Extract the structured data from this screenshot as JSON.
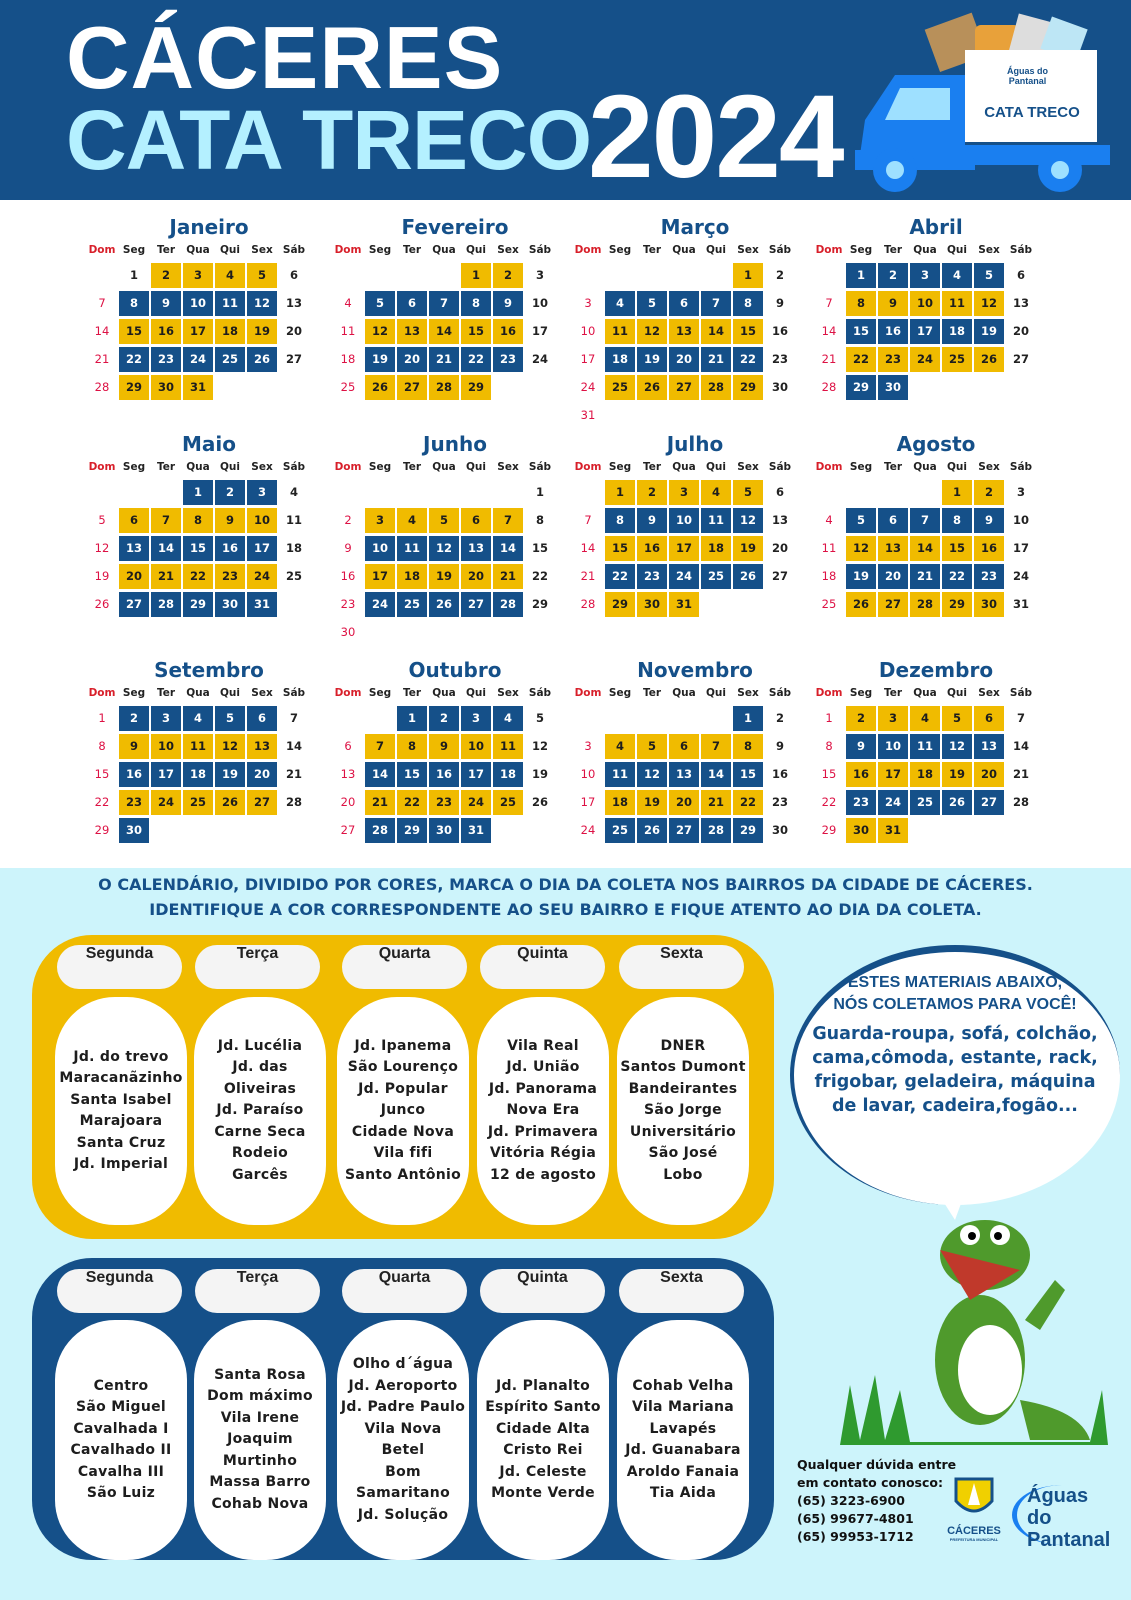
{
  "header": {
    "line1": "CÁCERES",
    "line2": "CATA TRECO",
    "year": "2024",
    "truck_label": "CATA TRECO",
    "truck_logo": "Águas do Pantanal"
  },
  "colors": {
    "blue": "#155089",
    "yellow": "#f0bb00",
    "title_cyan": "#b4f0ff",
    "background_light": "#cdf4fb",
    "sunday_red": "#d81f2a"
  },
  "weekdays": [
    "Dom",
    "Seg",
    "Ter",
    "Qua",
    "Qui",
    "Sex",
    "Sáb"
  ],
  "months": [
    {
      "name": "Janeiro",
      "first_weekday": 1,
      "days": 31,
      "week_colors": [
        "yellow",
        "blue",
        "yellow",
        "blue",
        "yellow"
      ],
      "not_highlighted": [
        1
      ]
    },
    {
      "name": "Fevereiro",
      "first_weekday": 4,
      "days": 29,
      "week_colors": [
        "yellow",
        "blue",
        "yellow",
        "blue",
        "yellow"
      ],
      "not_highlighted": []
    },
    {
      "name": "Março",
      "first_weekday": 5,
      "days": 31,
      "week_colors": [
        "yellow",
        "blue",
        "yellow",
        "blue",
        "yellow",
        "yellow"
      ],
      "not_highlighted": []
    },
    {
      "name": "Abril",
      "first_weekday": 1,
      "days": 30,
      "week_colors": [
        "blue",
        "yellow",
        "blue",
        "yellow",
        "blue"
      ],
      "not_highlighted": []
    },
    {
      "name": "Maio",
      "first_weekday": 3,
      "days": 31,
      "week_colors": [
        "blue",
        "yellow",
        "blue",
        "yellow",
        "blue"
      ],
      "not_highlighted": []
    },
    {
      "name": "Junho",
      "first_weekday": 6,
      "days": 30,
      "week_colors": [
        "yellow",
        "yellow",
        "blue",
        "yellow",
        "blue",
        "blue"
      ],
      "not_highlighted": []
    },
    {
      "name": "Julho",
      "first_weekday": 1,
      "days": 31,
      "week_colors": [
        "yellow",
        "blue",
        "yellow",
        "blue",
        "yellow"
      ],
      "not_highlighted": []
    },
    {
      "name": "Agosto",
      "first_weekday": 4,
      "days": 31,
      "week_colors": [
        "yellow",
        "blue",
        "yellow",
        "blue",
        "yellow"
      ],
      "not_highlighted": []
    },
    {
      "name": "Setembro",
      "first_weekday": 0,
      "days": 30,
      "week_colors": [
        "blue",
        "yellow",
        "blue",
        "yellow",
        "blue"
      ],
      "not_highlighted": []
    },
    {
      "name": "Outubro",
      "first_weekday": 2,
      "days": 31,
      "week_colors": [
        "blue",
        "yellow",
        "blue",
        "yellow",
        "blue"
      ],
      "not_highlighted": []
    },
    {
      "name": "Novembro",
      "first_weekday": 5,
      "days": 30,
      "week_colors": [
        "blue",
        "yellow",
        "blue",
        "yellow",
        "blue"
      ],
      "not_highlighted": []
    },
    {
      "name": "Dezembro",
      "first_weekday": 0,
      "days": 31,
      "week_colors": [
        "yellow",
        "blue",
        "yellow",
        "blue",
        "yellow"
      ],
      "not_highlighted": []
    }
  ],
  "intro": {
    "line1": "O CALENDÁRIO, DIVIDIDO POR CORES, MARCA O DIA DA COLETA NOS BAIRROS DA CIDADE DE CÁCERES.",
    "line2": "IDENTIFIQUE A COR CORRESPONDENTE AO SEU BAIRRO E FIQUE ATENTO AO DIA DA COLETA."
  },
  "yellow_schedule": [
    {
      "day": "Segunda",
      "areas": [
        "Jd. do trevo",
        "Maracanãzinho",
        "Santa Isabel",
        "Marajoara",
        "Santa Cruz",
        "Jd. Imperial"
      ]
    },
    {
      "day": "Terça",
      "areas": [
        "Jd. Lucélia",
        "Jd. das Oliveiras",
        "Jd. Paraíso",
        "Carne Seca",
        "Rodeio",
        "Garcês"
      ]
    },
    {
      "day": "Quarta",
      "areas": [
        "Jd. Ipanema",
        "São Lourenço",
        "Jd. Popular",
        "Junco",
        "Cidade Nova",
        "Vila fifi",
        "Santo Antônio"
      ]
    },
    {
      "day": "Quinta",
      "areas": [
        "Vila Real",
        "Jd. União",
        "Jd. Panorama",
        "Nova Era",
        "Jd. Primavera",
        "Vitória Régia",
        "12 de agosto"
      ]
    },
    {
      "day": "Sexta",
      "areas": [
        "DNER",
        "Santos Dumont",
        "Bandeirantes",
        "São Jorge",
        "Universitário",
        "São José",
        "Lobo"
      ]
    }
  ],
  "blue_schedule": [
    {
      "day": "Segunda",
      "areas": [
        "Centro",
        "São Miguel",
        "Cavalhada I",
        "Cavalhado II",
        "Cavalha III",
        "São Luiz"
      ]
    },
    {
      "day": "Terça",
      "areas": [
        "Santa Rosa",
        "Dom máximo",
        "Vila Irene",
        "Joaquim Murtinho",
        "Massa Barro",
        "Cohab Nova"
      ]
    },
    {
      "day": "Quarta",
      "areas": [
        "Olho d´água",
        "Jd. Aeroporto",
        "Jd. Padre Paulo",
        "Vila Nova",
        "Betel",
        "Bom",
        "Samaritano",
        "Jd. Solução"
      ]
    },
    {
      "day": "Quinta",
      "areas": [
        "Jd. Planalto",
        "Espírito Santo",
        "Cidade Alta",
        "Cristo Rei",
        "Jd. Celeste",
        "Monte Verde"
      ]
    },
    {
      "day": "Sexta",
      "areas": [
        "Cohab Velha",
        "Vila Mariana",
        "Lavapés",
        "Jd. Guanabara",
        "Aroldo Fanaia",
        "Tia Aida"
      ]
    }
  ],
  "bubble": {
    "heading1": "ESTES MATERIAIS ABAIXO,",
    "heading2": "NÓS COLETAMOS PARA VOCÊ!",
    "body": "Guarda-roupa, sofá, colchão, cama,cômoda, estante, rack, frigobar, geladeira, máquina de lavar, cadeira,fogão..."
  },
  "contact": {
    "line1": "Qualquer dúvida entre",
    "line2": "em contato conosco:",
    "phones": [
      "(65) 3223-6900",
      "(65) 99677-4801",
      "(65) 99953-1712"
    ]
  },
  "logos": {
    "city": "CÁCERES",
    "city_sub": "PREFEITURA MUNICIPAL",
    "utility": "Águas do Pantanal"
  }
}
